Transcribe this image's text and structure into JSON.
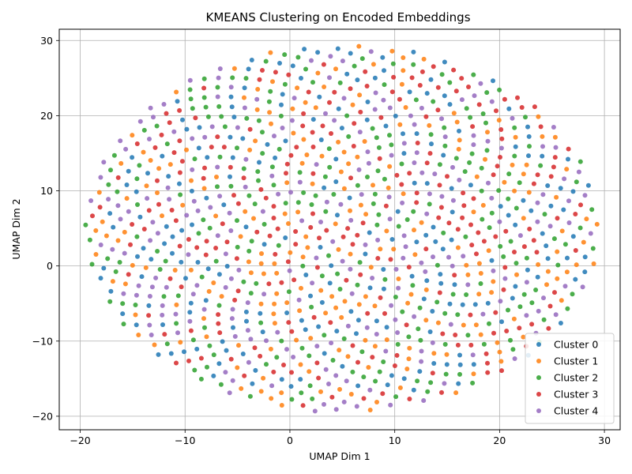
{
  "chart_data": {
    "type": "scatter",
    "title": "KMEANS Clustering on Encoded Embeddings",
    "xlabel": "UMAP Dim 1",
    "ylabel": "UMAP Dim 2",
    "xlim": [
      -22,
      31.5
    ],
    "ylim": [
      -21.8,
      31.5
    ],
    "xticks": [
      -20,
      -10,
      0,
      10,
      20,
      30
    ],
    "yticks": [
      -20,
      -10,
      0,
      10,
      20,
      30
    ],
    "grid": true,
    "legend_position": "lower-right",
    "cloud": {
      "center_x": 5,
      "center_y": 5,
      "radius": 24.5,
      "n_points": 1150
    },
    "series": [
      {
        "name": "Cluster 0",
        "color": "#1f77b4"
      },
      {
        "name": "Cluster 1",
        "color": "#ff7f0e"
      },
      {
        "name": "Cluster 2",
        "color": "#2ca02c"
      },
      {
        "name": "Cluster 3",
        "color": "#d62728"
      },
      {
        "name": "Cluster 4",
        "color": "#9467bd"
      }
    ]
  }
}
